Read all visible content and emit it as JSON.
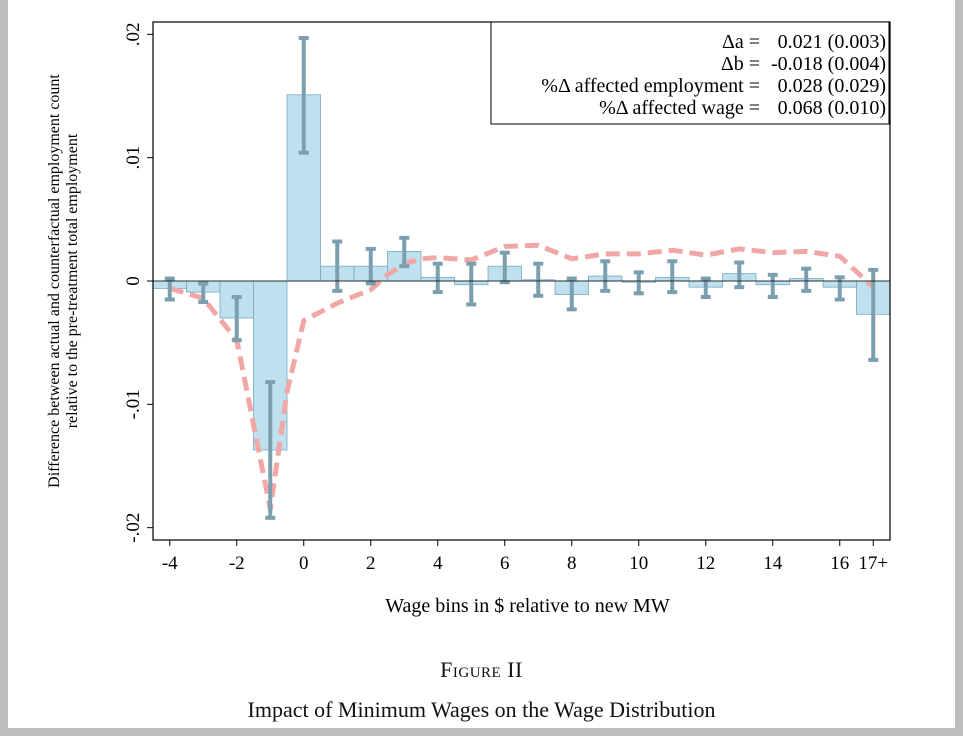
{
  "figure_label": "Figure II",
  "figure_title": "Impact of Minimum Wages on the Wage Distribution",
  "colors": {
    "bar_fill": "#bfe0ee",
    "bar_stroke": "#7aa9bf",
    "error_bar": "#7b9fae",
    "dashed_line": "#f2a7a7",
    "axis": "#000000"
  },
  "chart_data": {
    "type": "bar",
    "title": "",
    "xlabel": "Wage bins in $ relative to new MW",
    "ylabel_lines": [
      "Difference between actual and counterfactual employment count",
      "relative to the pre-treatment total employment"
    ],
    "xlim": [
      -4.5,
      17.5
    ],
    "ylim": [
      -0.021,
      0.021
    ],
    "x_ticks": [
      {
        "value": -4,
        "label": "-4"
      },
      {
        "value": -2,
        "label": "-2"
      },
      {
        "value": 0,
        "label": "0"
      },
      {
        "value": 2,
        "label": "2"
      },
      {
        "value": 4,
        "label": "4"
      },
      {
        "value": 6,
        "label": "6"
      },
      {
        "value": 8,
        "label": "8"
      },
      {
        "value": 10,
        "label": "10"
      },
      {
        "value": 12,
        "label": "12"
      },
      {
        "value": 14,
        "label": "14"
      },
      {
        "value": 16,
        "label": "16"
      },
      {
        "value": 17,
        "label": "17+"
      }
    ],
    "y_ticks": [
      {
        "value": 0.02,
        "label": ".02"
      },
      {
        "value": 0.01,
        "label": ".01"
      },
      {
        "value": 0,
        "label": "0"
      },
      {
        "value": -0.01,
        "label": "-.01"
      },
      {
        "value": -0.02,
        "label": "-.02"
      }
    ],
    "bars": {
      "x": [
        -4,
        -3,
        -2,
        -1,
        0,
        1,
        2,
        3,
        4,
        5,
        6,
        7,
        8,
        9,
        10,
        11,
        12,
        13,
        14,
        15,
        16,
        17
      ],
      "values": [
        -0.0006,
        -0.0009,
        -0.003,
        -0.0137,
        0.0151,
        0.0012,
        0.0012,
        0.0024,
        0.0003,
        -0.0003,
        0.0012,
        0.0001,
        -0.0011,
        0.0004,
        -0.0001,
        0.0003,
        -0.0005,
        0.0006,
        -0.0003,
        0.0002,
        -0.0005,
        -0.0027
      ],
      "ci_low": [
        -0.0015,
        -0.0017,
        -0.0048,
        -0.0192,
        0.0104,
        -0.0008,
        -0.0002,
        0.0012,
        -0.0009,
        -0.0019,
        -0.0001,
        -0.0012,
        -0.0023,
        -0.0008,
        -0.001,
        -0.0009,
        -0.0013,
        -0.0005,
        -0.0013,
        -0.0008,
        -0.0015,
        -0.0064
      ],
      "ci_high": [
        0.0002,
        -0.0002,
        -0.0013,
        -0.0082,
        0.0197,
        0.0032,
        0.0026,
        0.0035,
        0.0014,
        0.0014,
        0.0023,
        0.0014,
        0.0002,
        0.0016,
        0.0007,
        0.0016,
        0.0002,
        0.0015,
        0.0005,
        0.001,
        0.0003,
        0.0009
      ]
    },
    "line": {
      "style": "dashed",
      "x": [
        -4,
        -3,
        -2,
        -1,
        -0.5,
        0,
        1,
        2,
        2.5,
        3,
        3.5,
        4,
        5,
        6,
        7,
        8,
        9,
        10,
        11,
        12,
        13,
        14,
        15,
        16,
        17
      ],
      "y": [
        -0.0006,
        -0.0014,
        -0.0048,
        -0.0185,
        -0.009,
        -0.0032,
        -0.0018,
        -0.0007,
        0.0005,
        0.0014,
        0.0018,
        0.0019,
        0.0017,
        0.0028,
        0.0029,
        0.0018,
        0.0022,
        0.0022,
        0.0025,
        0.0021,
        0.0026,
        0.0023,
        0.0024,
        0.002,
        -0.0005
      ]
    },
    "annotation_box": {
      "placement": "top-right",
      "rows": [
        {
          "label": "Δa =",
          "value": "0.021 (0.003)"
        },
        {
          "label": "Δb =",
          "value": "-0.018 (0.004)"
        },
        {
          "label": "%Δ affected employment =",
          "value": "0.028 (0.029)"
        },
        {
          "label": "%Δ affected wage =",
          "value": "0.068 (0.010)"
        }
      ]
    }
  }
}
